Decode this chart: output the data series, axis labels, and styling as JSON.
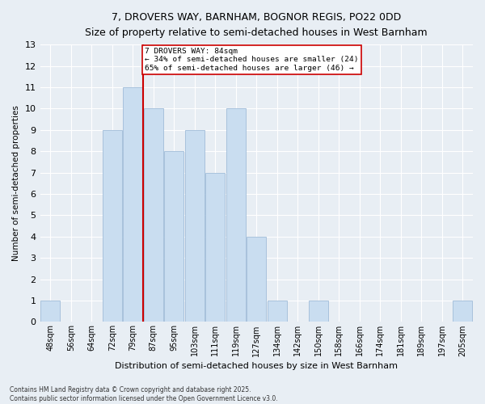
{
  "title_line1": "7, DROVERS WAY, BARNHAM, BOGNOR REGIS, PO22 0DD",
  "title_line2": "Size of property relative to semi-detached houses in West Barnham",
  "xlabel": "Distribution of semi-detached houses by size in West Barnham",
  "ylabel": "Number of semi-detached properties",
  "categories": [
    "48sqm",
    "56sqm",
    "64sqm",
    "72sqm",
    "79sqm",
    "87sqm",
    "95sqm",
    "103sqm",
    "111sqm",
    "119sqm",
    "127sqm",
    "134sqm",
    "142sqm",
    "150sqm",
    "158sqm",
    "166sqm",
    "174sqm",
    "181sqm",
    "189sqm",
    "197sqm",
    "205sqm"
  ],
  "values": [
    1,
    0,
    0,
    9,
    11,
    10,
    8,
    9,
    7,
    10,
    4,
    1,
    0,
    1,
    0,
    0,
    0,
    0,
    0,
    0,
    1
  ],
  "bar_color": "#c9ddf0",
  "bar_edgecolor": "#a0bcd8",
  "property_size_index": 5,
  "red_line_color": "#cc0000",
  "annotation_text_line1": "7 DROVERS WAY: 84sqm",
  "annotation_text_line2": "← 34% of semi-detached houses are smaller (24)",
  "annotation_text_line3": "65% of semi-detached houses are larger (46) →",
  "ylim": [
    0,
    13
  ],
  "yticks": [
    0,
    1,
    2,
    3,
    4,
    5,
    6,
    7,
    8,
    9,
    10,
    11,
    12,
    13
  ],
  "footer_line1": "Contains HM Land Registry data © Crown copyright and database right 2025.",
  "footer_line2": "Contains public sector information licensed under the Open Government Licence v3.0.",
  "background_color": "#e8eef4",
  "grid_color": "#ffffff"
}
